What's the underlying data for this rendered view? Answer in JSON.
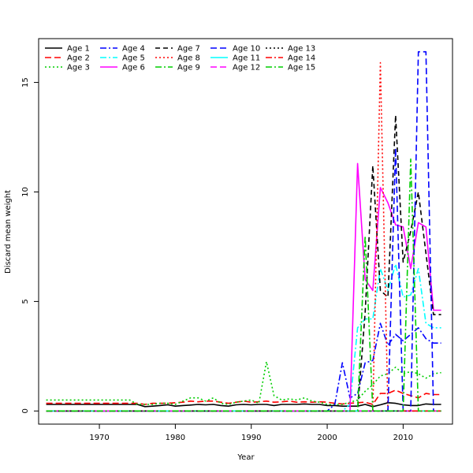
{
  "chart_data": {
    "type": "line",
    "title": "",
    "xlabel": "Year",
    "ylabel": "Discard mean weight",
    "xlim": [
      1962,
      2016.5
    ],
    "ylim": [
      -0.6,
      17
    ],
    "xticks": [
      1970,
      1980,
      1990,
      2000,
      2010
    ],
    "yticks": [
      0,
      5,
      10,
      15
    ],
    "legend_position": "top-left",
    "series": [
      {
        "name": "Age 1",
        "color": "#000000",
        "dash": "solid",
        "x": [
          1963,
          1975,
          1976,
          1977,
          1978,
          1979,
          1980,
          1981,
          1982,
          1983,
          1984,
          1985,
          1986,
          1987,
          1988,
          1989,
          1990,
          1991,
          1992,
          1993,
          1994,
          1995,
          1996,
          1997,
          1998,
          1999,
          2000,
          2001,
          2002,
          2003,
          2004,
          2005,
          2006,
          2007,
          2008,
          2009,
          2010,
          2011,
          2012,
          2013,
          2014,
          2015
        ],
        "y": [
          0.3,
          0.3,
          0.2,
          0.22,
          0.25,
          0.28,
          0.22,
          0.25,
          0.27,
          0.3,
          0.28,
          0.3,
          0.25,
          0.22,
          0.28,
          0.3,
          0.28,
          0.3,
          0.3,
          0.25,
          0.3,
          0.3,
          0.3,
          0.32,
          0.3,
          0.3,
          0.25,
          0.25,
          0.22,
          0.22,
          0.22,
          0.3,
          0.2,
          0.28,
          0.38,
          0.35,
          0.28,
          0.25,
          0.25,
          0.32,
          0.3,
          0.3
        ]
      },
      {
        "name": "Age 2",
        "color": "#ff0000",
        "dash": "8,4",
        "x": [
          1963,
          1974,
          1975,
          1976,
          1977,
          1978,
          1979,
          1980,
          1981,
          1982,
          1983,
          1984,
          1985,
          1986,
          1987,
          1988,
          1989,
          1990,
          1991,
          1992,
          1993,
          1994,
          1995,
          1996,
          1997,
          1998,
          1999,
          2000,
          2001,
          2002,
          2003,
          2004,
          2005,
          2006,
          2007,
          2008,
          2009,
          2010,
          2011,
          2012,
          2013,
          2014,
          2015
        ],
        "y": [
          0.35,
          0.35,
          0.35,
          0.3,
          0.35,
          0.35,
          0.35,
          0.38,
          0.4,
          0.45,
          0.42,
          0.45,
          0.45,
          0.4,
          0.35,
          0.4,
          0.45,
          0.4,
          0.42,
          0.45,
          0.4,
          0.42,
          0.45,
          0.4,
          0.42,
          0.4,
          0.42,
          0.4,
          0.35,
          0.32,
          0.35,
          0.38,
          0.4,
          0.3,
          0.8,
          0.8,
          0.95,
          0.8,
          0.7,
          0.6,
          0.8,
          0.75,
          0.75
        ]
      },
      {
        "name": "Age 3",
        "color": "#00cd00",
        "dash": "2,3",
        "x": [
          1963,
          1974,
          1975,
          1976,
          1977,
          1978,
          1979,
          1980,
          1981,
          1982,
          1983,
          1984,
          1985,
          1986,
          1987,
          1988,
          1989,
          1990,
          1991,
          1992,
          1993,
          1994,
          1995,
          1996,
          1997,
          1998,
          1999,
          2000,
          2001,
          2002,
          2003,
          2004,
          2005,
          2006,
          2007,
          2008,
          2009,
          2010,
          2011,
          2012,
          2013,
          2014,
          2015
        ],
        "y": [
          0.5,
          0.5,
          0.3,
          0.3,
          0.3,
          0.35,
          0.35,
          0.3,
          0.45,
          0.6,
          0.6,
          0.45,
          0.6,
          0.35,
          0.3,
          0.4,
          0.45,
          0.5,
          0.35,
          2.25,
          0.7,
          0.5,
          0.55,
          0.5,
          0.6,
          0.45,
          0.4,
          0.3,
          0.3,
          0.3,
          0.4,
          0.5,
          0.9,
          1.2,
          1.6,
          1.7,
          2.0,
          1.7,
          1.8,
          1.7,
          1.5,
          1.7,
          1.75
        ]
      },
      {
        "name": "Age 4",
        "color": "#0000ff",
        "dash": "8,3,2,3",
        "x": [
          1963,
          2000,
          2001,
          2002,
          2003,
          2004,
          2005,
          2006,
          2007,
          2008,
          2009,
          2010,
          2011,
          2012,
          2013,
          2014,
          2015
        ],
        "y": [
          0,
          0,
          0.3,
          2.2,
          0.6,
          0.8,
          2.2,
          2.3,
          4.0,
          3.0,
          3.5,
          3.2,
          3.5,
          3.8,
          3.3,
          3.1,
          3.1
        ]
      },
      {
        "name": "Age 5",
        "color": "#00ffff",
        "dash": "8,3,2,3",
        "x": [
          1963,
          2002,
          2003,
          2004,
          2005,
          2006,
          2007,
          2008,
          2009,
          2010,
          2011,
          2012,
          2013,
          2014,
          2015
        ],
        "y": [
          0,
          0,
          0.3,
          3.8,
          4.2,
          4.2,
          6.5,
          5.5,
          6.7,
          5.2,
          5.3,
          6.5,
          4.0,
          3.8,
          3.8
        ]
      },
      {
        "name": "Age 6",
        "color": "#ff00ff",
        "dash": "solid",
        "x": [
          1963,
          2003,
          2004,
          2005,
          2006,
          2007,
          2008,
          2009,
          2010,
          2011,
          2012,
          2013,
          2014,
          2015
        ],
        "y": [
          0,
          0,
          11.3,
          6.0,
          5.5,
          10.2,
          9.5,
          8.5,
          8.4,
          6.5,
          8.6,
          8.4,
          4.6,
          4.6
        ]
      },
      {
        "name": "Age 7",
        "color": "#000000",
        "dash": "6,4",
        "x": [
          1963,
          2004,
          2005,
          2006,
          2007,
          2008,
          2009,
          2010,
          2011,
          2012,
          2013,
          2014,
          2015
        ],
        "y": [
          0,
          0,
          4.5,
          11.2,
          5.5,
          5.2,
          13.5,
          6.8,
          8.2,
          10.0,
          7.2,
          4.4,
          4.4
        ]
      },
      {
        "name": "Age 8",
        "color": "#ff0000",
        "dash": "2,3",
        "x": [
          1963,
          2005,
          2006,
          2007,
          2008
        ],
        "y": [
          0,
          0,
          0,
          15.9,
          0
        ]
      },
      {
        "name": "Age 9",
        "color": "#00cd00",
        "dash": "8,3,2,3",
        "x": [
          1963,
          2004,
          2005,
          2006
        ],
        "y": [
          0,
          0,
          8.0,
          0
        ]
      },
      {
        "name": "Age 10",
        "color": "#0000ff",
        "dash": "8,4",
        "x": [
          1963,
          2008,
          2009,
          2010,
          2011,
          2012,
          2013,
          2014
        ],
        "y": [
          0,
          0,
          12.0,
          0,
          0,
          16.4,
          16.4,
          0
        ]
      },
      {
        "name": "Age 11",
        "color": "#00ffff",
        "dash": "solid",
        "x": [
          1963,
          2015
        ],
        "y": [
          0,
          0
        ]
      },
      {
        "name": "Age 12",
        "color": "#ff00ff",
        "dash": "8,4",
        "x": [
          1963,
          2015
        ],
        "y": [
          0,
          0
        ]
      },
      {
        "name": "Age 13",
        "color": "#000000",
        "dash": "2,3",
        "x": [
          1963,
          2015
        ],
        "y": [
          0,
          0
        ]
      },
      {
        "name": "Age 14",
        "color": "#ff0000",
        "dash": "8,3,2,3",
        "x": [
          1963,
          2015
        ],
        "y": [
          0,
          0
        ]
      },
      {
        "name": "Age 15",
        "color": "#00cd00",
        "dash": "8,3,2,3",
        "x": [
          1963,
          2010,
          2011,
          2012,
          2015
        ],
        "y": [
          0,
          0,
          11.5,
          0,
          0
        ]
      }
    ]
  }
}
